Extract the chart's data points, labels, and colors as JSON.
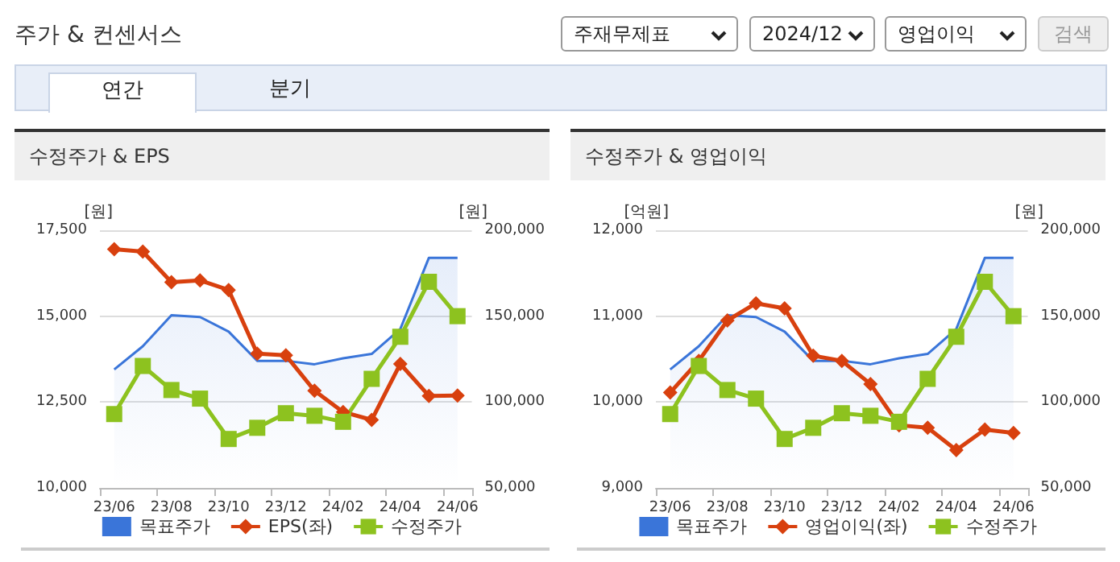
{
  "chart_data": [
    {
      "type": "other",
      "title": "주가 & 컨센서스",
      "annotations": [
        "주재무제표",
        "2024/12",
        "영업이익",
        "검색",
        "연간",
        "분기"
      ]
    },
    {
      "type": "line",
      "title": "수정주가 & EPS",
      "ylabel": "[원]",
      "y2label": "[원]",
      "categories": [
        "23/06",
        null,
        "23/08",
        null,
        "23/10",
        null,
        "23/12",
        null,
        "24/02",
        null,
        "24/04",
        null,
        "24/06"
      ],
      "ylim": [
        10000,
        17500
      ],
      "yticks": [
        {
          "value": 10000,
          "label": "10,000"
        },
        {
          "value": 12500,
          "label": "12,500"
        },
        {
          "value": 15000,
          "label": "15,000"
        },
        {
          "value": 17500,
          "label": "17,500"
        }
      ],
      "y2lim": [
        50000,
        200000
      ],
      "y2ticks": [
        {
          "value": 50000,
          "label": "50,000"
        },
        {
          "value": 100000,
          "label": "100,000"
        },
        {
          "value": 150000,
          "label": "150,000"
        },
        {
          "value": 200000,
          "label": "200,000"
        }
      ],
      "grid": "y",
      "legend": "bottom",
      "series": [
        {
          "name": "목표주가",
          "type": "area",
          "axis": "y2",
          "color": "#3a75d9",
          "marker": "none",
          "values": [
            119000,
            132500,
            150500,
            149500,
            141000,
            124000,
            124000,
            122000,
            125500,
            128000,
            142500,
            184000,
            184000
          ]
        },
        {
          "name": "EPS(좌)",
          "color": "#d8400e",
          "marker": "diamond",
          "values": [
            16950,
            16880,
            15990,
            16040,
            15760,
            13910,
            13860,
            12830,
            12210,
            11980,
            13610,
            12680,
            12690
          ]
        },
        {
          "name": "수정주가",
          "axis": "y2",
          "color": "#8dc21f",
          "marker": "square",
          "values": [
            93000,
            121000,
            107000,
            102000,
            78500,
            85000,
            93500,
            92000,
            88500,
            113500,
            138000,
            170000,
            150000
          ]
        }
      ]
    },
    {
      "type": "line",
      "title": "수정주가 & 영업이익",
      "ylabel": "[억원]",
      "y2label": "[원]",
      "categories": [
        "23/06",
        null,
        "23/08",
        null,
        "23/10",
        null,
        "23/12",
        null,
        "24/02",
        null,
        "24/04",
        null,
        "24/06"
      ],
      "ylim": [
        9000,
        12000
      ],
      "yticks": [
        {
          "value": 9000,
          "label": "9,000"
        },
        {
          "value": 10000,
          "label": "10,000"
        },
        {
          "value": 11000,
          "label": "11,000"
        },
        {
          "value": 12000,
          "label": "12,000"
        }
      ],
      "y2lim": [
        50000,
        200000
      ],
      "y2ticks": [
        {
          "value": 50000,
          "label": "50,000"
        },
        {
          "value": 100000,
          "label": "100,000"
        },
        {
          "value": 150000,
          "label": "150,000"
        },
        {
          "value": 200000,
          "label": "200,000"
        }
      ],
      "grid": "y",
      "legend": "bottom",
      "series": [
        {
          "name": "목표주가",
          "type": "area",
          "axis": "y2",
          "color": "#3a75d9",
          "marker": "none",
          "values": [
            119000,
            132500,
            150500,
            149500,
            141000,
            124000,
            124000,
            122000,
            125500,
            128000,
            142500,
            184000,
            184000
          ]
        },
        {
          "name": "영업이익(좌)",
          "color": "#d8400e",
          "marker": "diamond",
          "values": [
            10110,
            10480,
            10950,
            11150,
            11090,
            10540,
            10480,
            10210,
            9730,
            9700,
            9440,
            9680,
            9640
          ]
        },
        {
          "name": "수정주가",
          "axis": "y2",
          "color": "#8dc21f",
          "marker": "square",
          "values": [
            93000,
            121000,
            107000,
            102000,
            78500,
            85000,
            93500,
            92000,
            88500,
            113500,
            138000,
            170000,
            150000
          ]
        }
      ]
    }
  ]
}
